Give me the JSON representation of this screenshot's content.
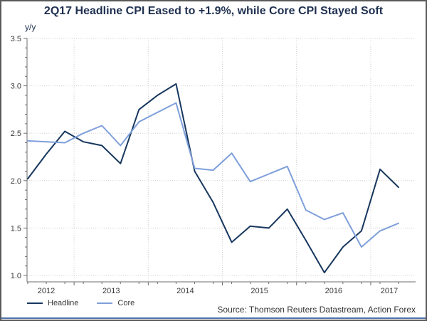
{
  "header": {
    "title": "2Q17 Headline CPI Eased to +1.9%, while Core CPI Stayed Soft",
    "y_axis_unit": "y/y"
  },
  "footer": {
    "source": "Source: Thomson Reuters Datastream, Action Forex"
  },
  "colors": {
    "headline_line": "#17375E",
    "core_line": "#7E9FDA",
    "title_text": "#1F3050",
    "axis": "#6E6E6E",
    "tick_label": "#3A3A3A",
    "gridline": "#D0D0D0",
    "source_text": "#333333",
    "bottom_bar": "#5272B0"
  },
  "chart_data": {
    "type": "line",
    "x_labels": [
      "2012-Q2",
      "2012-Q3",
      "2012-Q4",
      "2013-Q1",
      "2013-Q2",
      "2013-Q3",
      "2013-Q4",
      "2014-Q1",
      "2014-Q2",
      "2014-Q3",
      "2014-Q4",
      "2015-Q1",
      "2015-Q2",
      "2015-Q3",
      "2015-Q4",
      "2016-Q1",
      "2016-Q2",
      "2016-Q3",
      "2016-Q4",
      "2017-Q1",
      "2017-Q2"
    ],
    "year_labels": [
      "2012",
      "2013",
      "2014",
      "2015",
      "2016",
      "2017"
    ],
    "series": [
      {
        "name": "Headline",
        "color": "#17375E",
        "values": [
          2.02,
          2.28,
          2.52,
          2.41,
          2.37,
          2.18,
          2.75,
          2.9,
          3.02,
          2.1,
          1.77,
          1.35,
          1.52,
          1.5,
          1.7,
          1.37,
          1.03,
          1.3,
          1.47,
          2.12,
          1.93
        ]
      },
      {
        "name": "Core",
        "color": "#7E9FDA",
        "values": [
          2.42,
          2.41,
          2.4,
          2.5,
          2.58,
          2.37,
          2.62,
          2.72,
          2.82,
          2.13,
          2.11,
          2.29,
          1.99,
          2.07,
          2.15,
          1.69,
          1.59,
          1.66,
          1.3,
          1.47,
          1.55
        ]
      }
    ],
    "ylim": [
      1.0,
      3.5
    ],
    "y_major_step": 0.5,
    "y_minor_step": 0.1,
    "grid": "dotted",
    "legend_position": "bottom-left",
    "title": "2Q17 Headline CPI Eased to +1.9%, while Core CPI Stayed Soft",
    "ylabel": "y/y"
  }
}
